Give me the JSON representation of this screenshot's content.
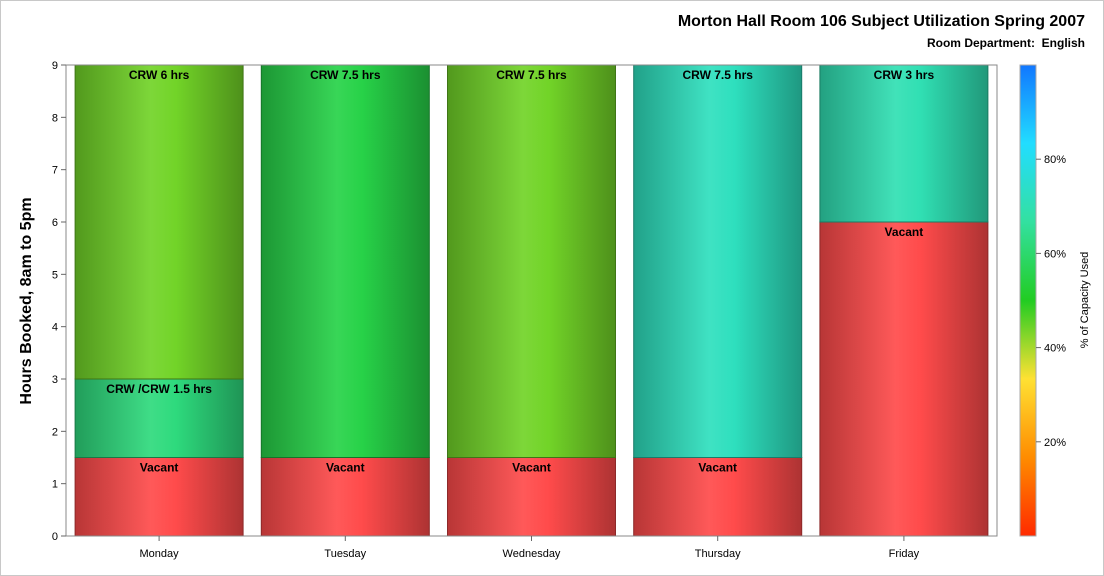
{
  "chart_data": {
    "type": "bar",
    "stacked": true,
    "title": "Morton Hall Room 106 Subject Utilization Spring 2007",
    "subtitle": "Room Department:  English",
    "xlabel": "",
    "ylabel": "Hours Booked, 8am to 5pm",
    "ylim": [
      0,
      9
    ],
    "yticks": [
      0,
      1,
      2,
      3,
      4,
      5,
      6,
      7,
      8,
      9
    ],
    "grid": false,
    "categories": [
      "Monday",
      "Tuesday",
      "Wednesday",
      "Thursday",
      "Friday"
    ],
    "stacks": [
      {
        "category": "Monday",
        "segments": [
          {
            "label": "Vacant",
            "from": 0,
            "to": 1.5,
            "pct_used": 0
          },
          {
            "label": "CRW /CRW 1.5 hrs",
            "from": 1.5,
            "to": 3,
            "pct_used": 62
          },
          {
            "label": "CRW 6 hrs",
            "from": 3,
            "to": 9,
            "pct_used": 44
          }
        ]
      },
      {
        "category": "Tuesday",
        "segments": [
          {
            "label": "Vacant",
            "from": 0,
            "to": 1.5,
            "pct_used": 0
          },
          {
            "label": "CRW 7.5 hrs",
            "from": 1.5,
            "to": 9,
            "pct_used": 55
          }
        ]
      },
      {
        "category": "Wednesday",
        "segments": [
          {
            "label": "Vacant",
            "from": 0,
            "to": 1.5,
            "pct_used": 0
          },
          {
            "label": "CRW 7.5 hrs",
            "from": 1.5,
            "to": 9,
            "pct_used": 44
          }
        ]
      },
      {
        "category": "Thursday",
        "segments": [
          {
            "label": "Vacant",
            "from": 0,
            "to": 1.5,
            "pct_used": 0
          },
          {
            "label": "CRW 7.5 hrs",
            "from": 1.5,
            "to": 9,
            "pct_used": 72
          }
        ]
      },
      {
        "category": "Friday",
        "segments": [
          {
            "label": "Vacant",
            "from": 0,
            "to": 6,
            "pct_used": 0
          },
          {
            "label": "CRW 3 hrs",
            "from": 6,
            "to": 9,
            "pct_used": 70
          }
        ]
      }
    ],
    "colorbar": {
      "label": "% of Capacity Used",
      "ticks": [
        "20%",
        "40%",
        "60%",
        "80%"
      ],
      "tick_values": [
        20,
        40,
        60,
        80
      ],
      "range": [
        0,
        100
      ],
      "placement": "right"
    }
  },
  "colors": {
    "vacant": "#ff4b4b",
    "gradient_stops": [
      "#ff2a00",
      "#ff8c00",
      "#ffe133",
      "#22cc22",
      "#33e0a0",
      "#22ddff",
      "#1177ff"
    ]
  }
}
